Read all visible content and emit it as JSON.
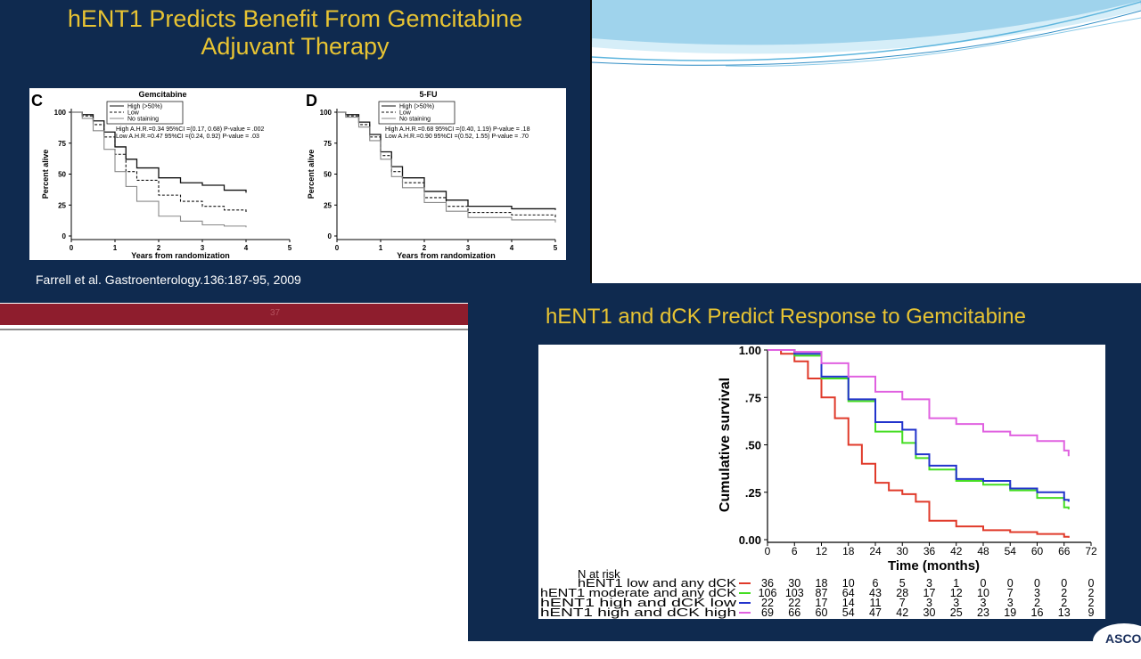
{
  "slide_top_left": {
    "title_line1": "hENT1 Predicts Benefit From Gemcitabine",
    "title_line2": "Adjuvant Therapy",
    "citation": "Farrell et al. Gastroenterology.136:187-95, 2009",
    "page_number": "37"
  },
  "slide_bottom_right": {
    "title": "hENT1 and dCK Predict Response to Gemcitabine"
  },
  "logo_text": "ASCO",
  "colors": {
    "slide_bg": "#0f2a4f",
    "title_yellow": "#e8c433",
    "red_bar": "#8e1d2d",
    "red": "#e03a2a",
    "green": "#44dd22",
    "blue": "#2233cc",
    "magenta": "#e060e0"
  },
  "chart_data": [
    {
      "type": "line",
      "panel_letter": "C",
      "title": "Gemcitabine",
      "xlabel": "Years from randomization",
      "ylabel": "Percent alive",
      "xlim": [
        0,
        5
      ],
      "ylim": [
        0,
        100
      ],
      "x_ticks": [
        "0",
        "1",
        "2",
        "3",
        "4",
        "5"
      ],
      "y_ticks": [
        "0",
        "25",
        "50",
        "75",
        "100"
      ],
      "legend": [
        "High (>50%)",
        "Low",
        "No staining"
      ],
      "legend_position": "top-left",
      "annotations": [
        "High A.H.R.=0.34 95%CI =(0.17, 0.68) P-value = .002",
        "Low A.H.R.=0.47 95%CI =(0.24, 0.92) P-value = .03"
      ],
      "series": [
        {
          "name": "High (>50%)",
          "x": [
            0.25,
            0.5,
            0.75,
            1.0,
            1.25,
            1.5,
            2.0,
            2.5,
            3.0,
            3.5,
            4.0
          ],
          "y": [
            98,
            93,
            84,
            72,
            62,
            55,
            47,
            43,
            41,
            37,
            35
          ]
        },
        {
          "name": "Low",
          "x": [
            0.25,
            0.5,
            0.75,
            1.0,
            1.25,
            1.5,
            2.0,
            2.5,
            3.0,
            3.5,
            4.0
          ],
          "y": [
            97,
            90,
            80,
            66,
            52,
            45,
            33,
            28,
            24,
            21,
            19
          ]
        },
        {
          "name": "No staining",
          "x": [
            0.25,
            0.5,
            0.75,
            1.0,
            1.25,
            1.5,
            2.0,
            2.5,
            3.0,
            3.5,
            4.0
          ],
          "y": [
            95,
            85,
            70,
            52,
            40,
            28,
            16,
            12,
            9,
            8,
            7
          ]
        }
      ]
    },
    {
      "type": "line",
      "panel_letter": "D",
      "title": "5-FU",
      "xlabel": "Years from randomization",
      "ylabel": "Percent alive",
      "xlim": [
        0,
        5
      ],
      "ylim": [
        0,
        100
      ],
      "x_ticks": [
        "0",
        "1",
        "2",
        "3",
        "4",
        "5"
      ],
      "y_ticks": [
        "0",
        "25",
        "50",
        "75",
        "100"
      ],
      "legend": [
        "High (>50%)",
        "Low",
        "No staining"
      ],
      "legend_position": "top-right",
      "annotations": [
        "High A.H.R.=0.68 95%CI =(0.40, 1.19) P-value = .18",
        "Low A.H.R.=0.90 95%CI =(0.52, 1.55) P-value = .70"
      ],
      "series": [
        {
          "name": "High (>50%)",
          "x": [
            0.2,
            0.5,
            0.75,
            1.0,
            1.25,
            1.5,
            2.0,
            2.5,
            3.0,
            4.0,
            5.0
          ],
          "y": [
            98,
            92,
            82,
            68,
            56,
            47,
            36,
            29,
            24,
            22,
            21
          ]
        },
        {
          "name": "Low",
          "x": [
            0.2,
            0.5,
            0.75,
            1.0,
            1.25,
            1.5,
            2.0,
            2.5,
            3.0,
            4.0,
            5.0
          ],
          "y": [
            97,
            90,
            80,
            65,
            52,
            43,
            31,
            24,
            19,
            17,
            15
          ]
        },
        {
          "name": "No staining",
          "x": [
            0.2,
            0.5,
            0.75,
            1.0,
            1.25,
            1.5,
            2.0,
            2.5,
            3.0,
            4.0,
            5.0
          ],
          "y": [
            96,
            88,
            77,
            62,
            48,
            39,
            27,
            20,
            15,
            13,
            11
          ]
        }
      ]
    },
    {
      "type": "line",
      "xlabel": "Time (months)",
      "ylabel": "Cumulative survival",
      "xlim": [
        0,
        72
      ],
      "ylim": [
        0,
        1.0
      ],
      "x_ticks": [
        "0",
        "6",
        "12",
        "18",
        "24",
        "30",
        "36",
        "42",
        "48",
        "54",
        "60",
        "66",
        "72"
      ],
      "y_ticks": [
        "0.00",
        ".25",
        ".50",
        ".75",
        "1.00"
      ],
      "at_risk_title": "N at risk",
      "at_risk_times": [
        0,
        6,
        12,
        18,
        24,
        30,
        36,
        42,
        48,
        54,
        60,
        66,
        72
      ],
      "series": [
        {
          "name": "hENT1 low and any dCK",
          "color": "#e03a2a",
          "x": [
            0,
            3,
            6,
            9,
            12,
            15,
            18,
            21,
            24,
            27,
            30,
            33,
            36,
            42,
            48,
            54,
            60,
            66,
            67
          ],
          "y": [
            1.0,
            0.98,
            0.94,
            0.85,
            0.75,
            0.64,
            0.5,
            0.4,
            0.3,
            0.26,
            0.24,
            0.2,
            0.1,
            0.07,
            0.05,
            0.04,
            0.03,
            0.015,
            0.01
          ],
          "at_risk": [
            "36",
            "30",
            "18",
            "10",
            "6",
            "5",
            "3",
            "1",
            "0",
            "0",
            "0",
            "0",
            "0"
          ]
        },
        {
          "name": "hENT1 moderate and any dCK",
          "color": "#44dd22",
          "x": [
            0,
            6,
            12,
            18,
            24,
            30,
            33,
            36,
            42,
            48,
            54,
            60,
            66,
            67
          ],
          "y": [
            1.0,
            0.97,
            0.85,
            0.73,
            0.57,
            0.51,
            0.43,
            0.37,
            0.31,
            0.29,
            0.26,
            0.22,
            0.17,
            0.16
          ],
          "at_risk": [
            "106",
            "103",
            "87",
            "64",
            "43",
            "28",
            "17",
            "12",
            "10",
            "7",
            "3",
            "2",
            "2"
          ]
        },
        {
          "name": "hENT1 high and dCK low",
          "color": "#2233cc",
          "x": [
            0,
            6,
            12,
            18,
            24,
            30,
            33,
            36,
            42,
            48,
            54,
            60,
            66,
            67
          ],
          "y": [
            1.0,
            0.98,
            0.86,
            0.74,
            0.62,
            0.58,
            0.45,
            0.39,
            0.32,
            0.31,
            0.27,
            0.25,
            0.21,
            0.2
          ],
          "at_risk": [
            "22",
            "22",
            "17",
            "14",
            "11",
            "7",
            "3",
            "3",
            "3",
            "3",
            "2",
            "2",
            "2"
          ]
        },
        {
          "name": "hENT1 high and dCK high",
          "color": "#e060e0",
          "x": [
            0,
            6,
            12,
            18,
            24,
            30,
            36,
            42,
            48,
            54,
            60,
            66,
            67
          ],
          "y": [
            1.0,
            0.99,
            0.93,
            0.86,
            0.78,
            0.74,
            0.64,
            0.61,
            0.57,
            0.55,
            0.52,
            0.47,
            0.44
          ],
          "at_risk": [
            "69",
            "66",
            "60",
            "54",
            "47",
            "42",
            "30",
            "25",
            "23",
            "19",
            "16",
            "13",
            "9"
          ]
        }
      ]
    }
  ]
}
